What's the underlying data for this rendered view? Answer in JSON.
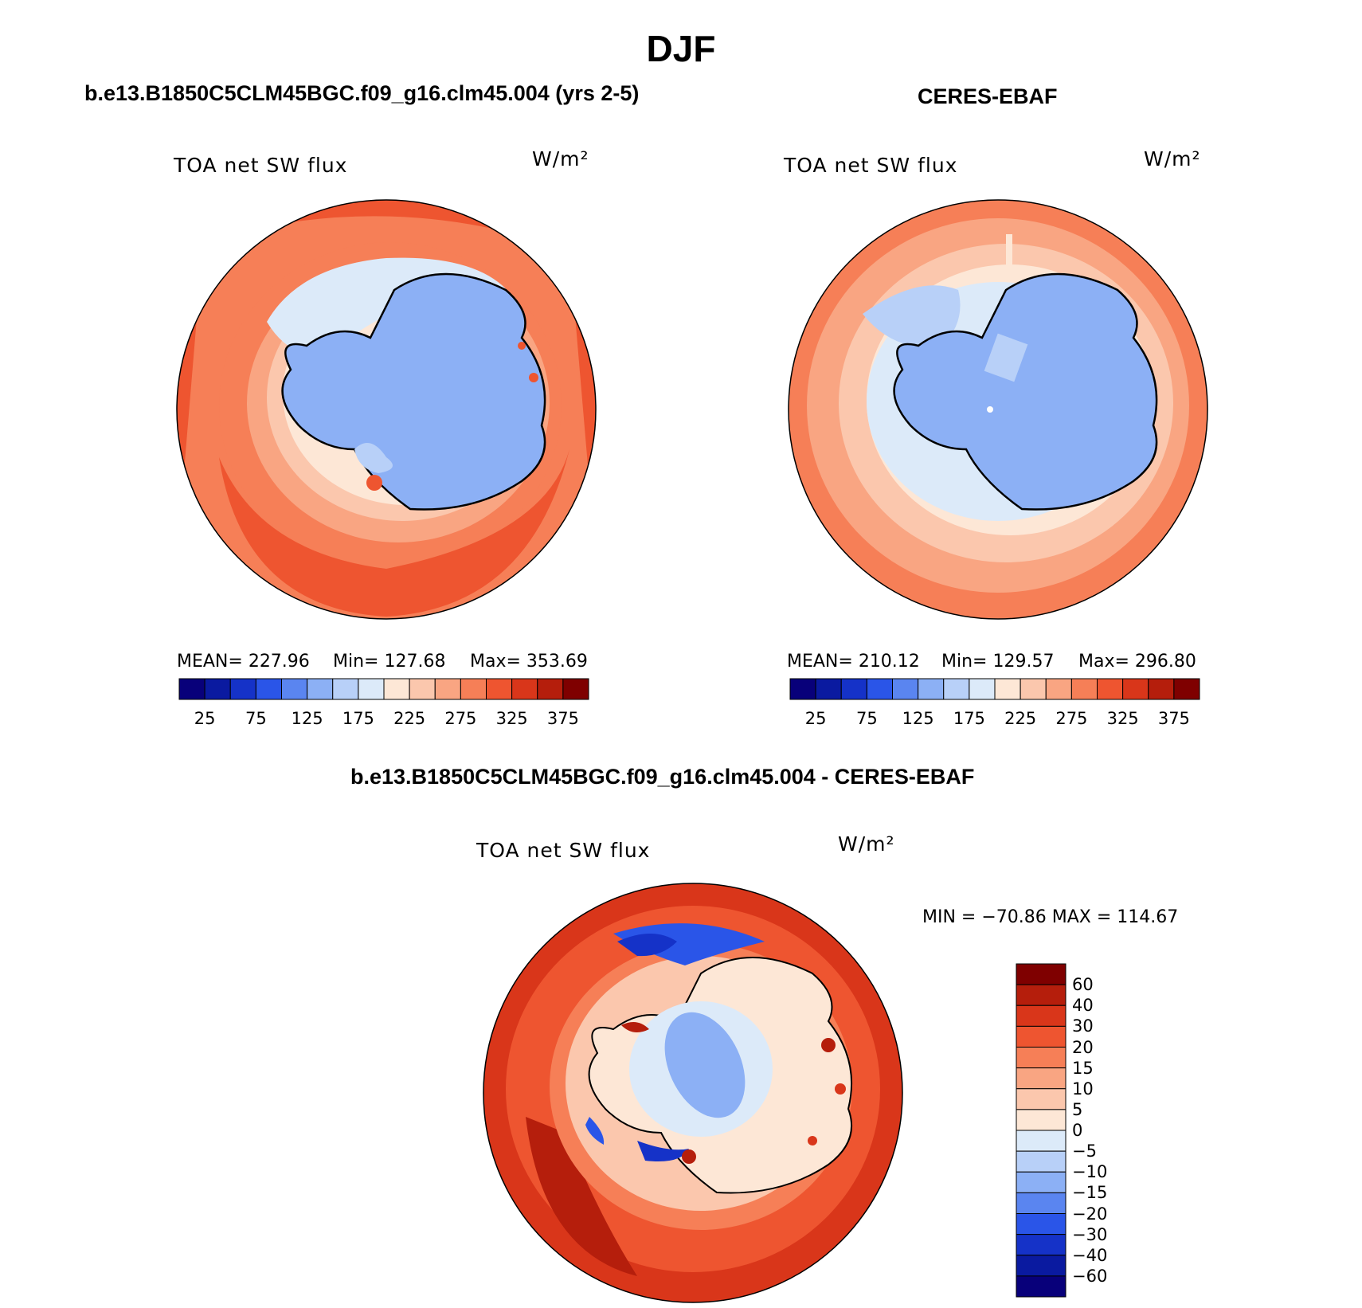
{
  "main_title": "DJF",
  "panel_left": {
    "title": "b.e13.B1850C5CLM45BGC.f09_g16.clm45.004 (yrs 2-5)",
    "variable": "TOA net SW flux",
    "units": "W/m²",
    "stats": {
      "mean": "MEAN= 227.96",
      "min": "Min= 127.68",
      "max": "Max= 353.69"
    }
  },
  "panel_right": {
    "title": "CERES-EBAF",
    "variable": "TOA net SW flux",
    "units": "W/m²",
    "stats": {
      "mean": "MEAN= 210.12",
      "min": "Min= 129.57",
      "max": "Max= 296.80"
    }
  },
  "panel_diff": {
    "title": "b.e13.B1850C5CLM45BGC.f09_g16.clm45.004 - CERES-EBAF",
    "variable": "TOA net SW flux",
    "units": "W/m²",
    "range_text": "MIN = −70.86 MAX = 114.67"
  },
  "colorbar_abs": {
    "colors": [
      "#08007a",
      "#0a1aa0",
      "#1532c8",
      "#2a55e8",
      "#5a85f0",
      "#8cb0f5",
      "#b8d0f8",
      "#dceaf9",
      "#fde7d6",
      "#fbc7ad",
      "#f9a582",
      "#f67f57",
      "#ee5530",
      "#d9361a",
      "#b51e0c",
      "#7f0000"
    ],
    "tick_labels": [
      "25",
      "75",
      "125",
      "175",
      "225",
      "275",
      "325",
      "375"
    ]
  },
  "colorbar_diff": {
    "colors_top_to_bottom": [
      "#7f0000",
      "#b51e0c",
      "#d9361a",
      "#ee5530",
      "#f67f57",
      "#f9a582",
      "#fbc7ad",
      "#fde7d6",
      "#dceaf9",
      "#b8d0f8",
      "#8cb0f5",
      "#5a85f0",
      "#2a55e8",
      "#1532c8",
      "#0a1aa0",
      "#08007a"
    ],
    "tick_labels": [
      "60",
      "40",
      "30",
      "20",
      "15",
      "10",
      "5",
      "0",
      "−5",
      "−10",
      "−15",
      "−20",
      "−30",
      "−40",
      "−60"
    ]
  },
  "colors": {
    "ocean_high": "#ee5530",
    "ocean_mid": "#f67f57",
    "ocean_low": "#f9a582",
    "ice_edge": "#fde7d6",
    "sea_ice": "#b8d0f8",
    "land_ice": "#8cb0f5",
    "diff_neg": "#2a55e8",
    "diff_pos": "#d9361a"
  }
}
